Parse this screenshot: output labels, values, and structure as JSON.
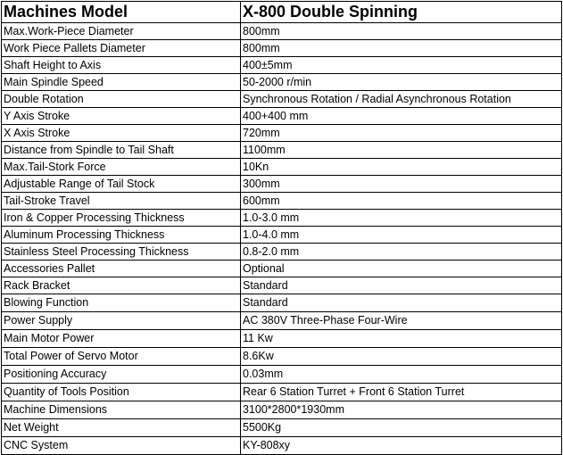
{
  "header": {
    "label": "Machines Model",
    "value": "X-800 Double Spinning"
  },
  "rows": [
    {
      "label": "Max.Work-Piece Diameter",
      "value": "800mm"
    },
    {
      "label": "Work Piece Pallets Diameter",
      "value": "800mm"
    },
    {
      "label": "Shaft Height to Axis",
      "value": "400±5mm"
    },
    {
      "label": "Main Spindle Speed",
      "value": "50-2000 r/min"
    },
    {
      "label": "Double Rotation",
      "value": "Synchronous Rotation / Radial Asynchronous Rotation"
    },
    {
      "label": "Y Axis Stroke",
      "value": "400+400 mm"
    },
    {
      "label": "X Axis Stroke",
      "value": "720mm"
    },
    {
      "label": "Distance from Spindle to Tail Shaft",
      "value": "1100mm"
    },
    {
      "label": "Max.Tail-Stork Force",
      "value": "10Kn"
    },
    {
      "label": "Adjustable Range of Tail Stock",
      "value": "300mm"
    },
    {
      "label": "Tail-Stroke Travel",
      "value": "600mm"
    },
    {
      "label": "Iron & Copper Processing Thickness",
      "value": "1.0-3.0 mm"
    },
    {
      "label": "Aluminum Processing Thickness",
      "value": "1.0-4.0 mm"
    },
    {
      "label": "Stainless Steel Processing Thickness",
      "value": "0.8-2.0 mm"
    },
    {
      "label": "Accessories Pallet",
      "value": "Optional"
    },
    {
      "label": "Rack Bracket",
      "value": "Standard"
    },
    {
      "label": "Blowing Function",
      "value": "Standard"
    },
    {
      "label": "Power Supply",
      "value": "AC 380V Three-Phase Four-Wire"
    },
    {
      "label": "Main Motor Power",
      "value": "11 Kw"
    },
    {
      "label": "Total Power of Servo Motor",
      "value": "8.6Kw"
    },
    {
      "label": "Positioning Accuracy",
      "value": "0.03mm"
    },
    {
      "label": "Quantity of Tools Position",
      "value": "Rear 6 Station Turret + Front 6 Station Turret"
    },
    {
      "label": "Machine Dimensions",
      "value": "3100*2800*1930mm"
    },
    {
      "label": "Net Weight",
      "value": "5500Kg"
    },
    {
      "label": "CNC System",
      "value": "KY-808xy"
    }
  ]
}
